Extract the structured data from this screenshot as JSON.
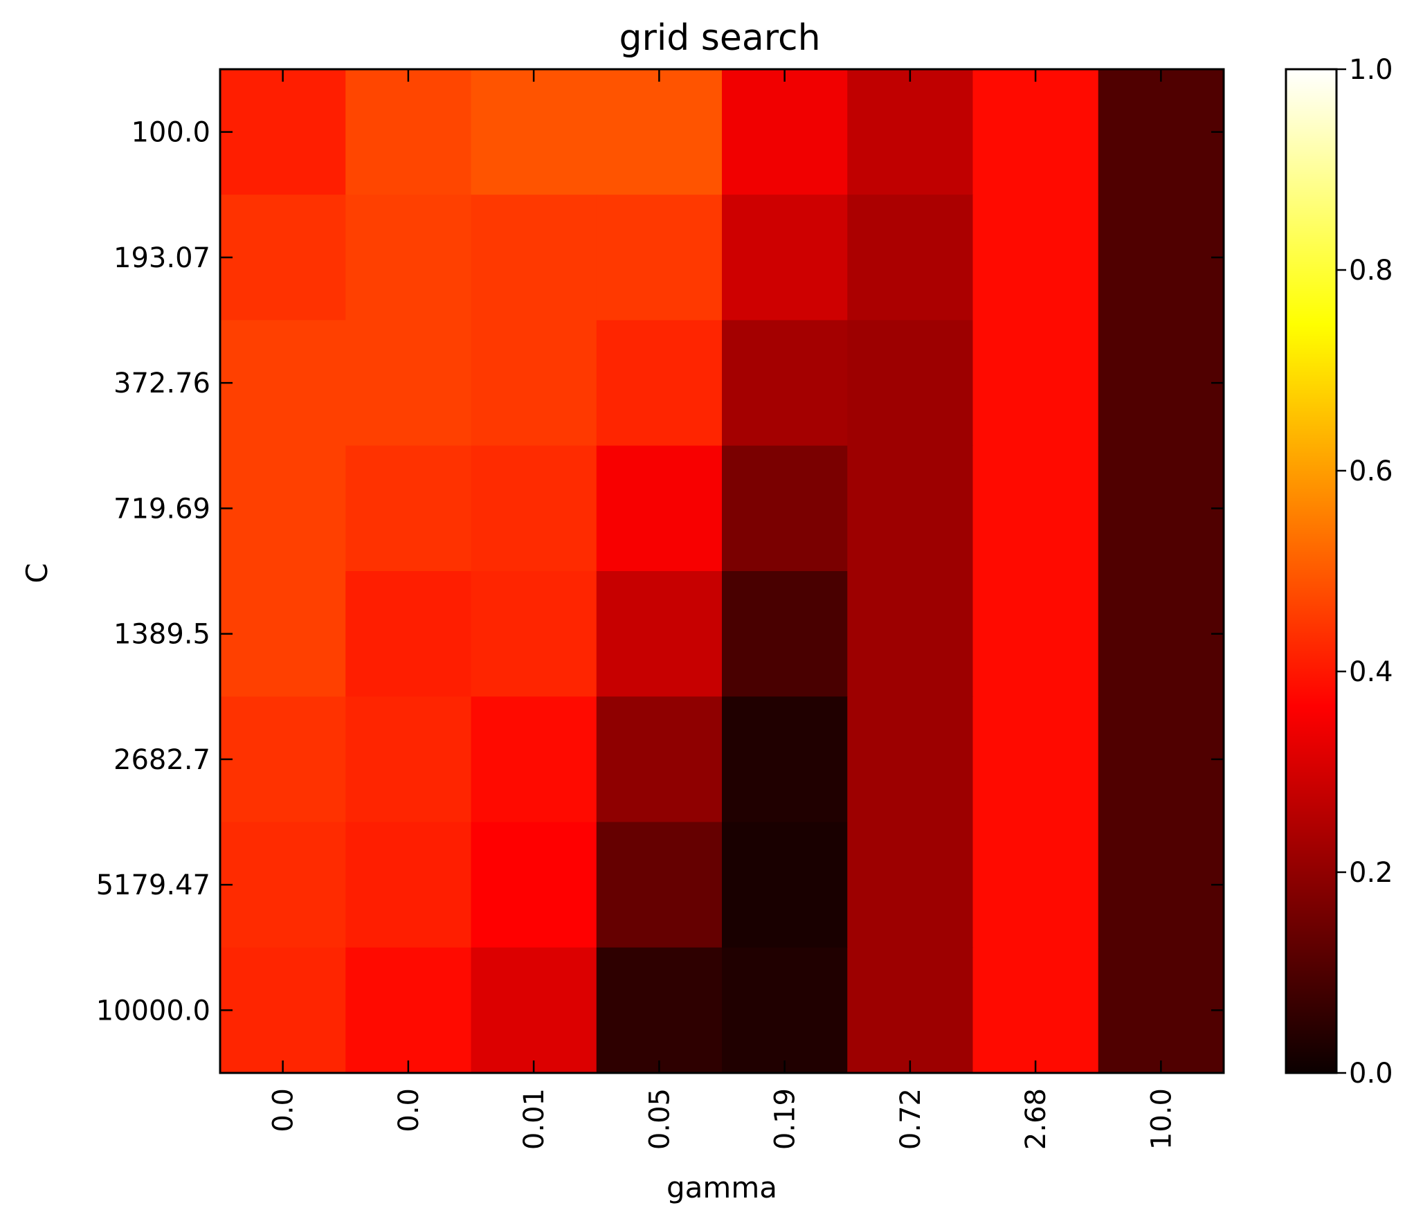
{
  "chart_data": {
    "type": "heatmap",
    "title": "grid search",
    "xlabel": "gamma",
    "ylabel": "C",
    "x_categories": [
      "0.0",
      "0.0",
      "0.01",
      "0.05",
      "0.19",
      "0.72",
      "2.68",
      "10.0"
    ],
    "y_categories": [
      "100.0",
      "193.07",
      "372.76",
      "719.69",
      "1389.5",
      "2682.7",
      "5179.47",
      "10000.0"
    ],
    "values": [
      [
        0.41,
        0.47,
        0.49,
        0.49,
        0.33,
        0.26,
        0.38,
        0.1
      ],
      [
        0.44,
        0.46,
        0.45,
        0.45,
        0.28,
        0.23,
        0.38,
        0.1
      ],
      [
        0.46,
        0.46,
        0.45,
        0.42,
        0.22,
        0.21,
        0.38,
        0.1
      ],
      [
        0.46,
        0.44,
        0.43,
        0.34,
        0.16,
        0.21,
        0.38,
        0.1
      ],
      [
        0.46,
        0.41,
        0.42,
        0.27,
        0.09,
        0.21,
        0.38,
        0.1
      ],
      [
        0.44,
        0.42,
        0.38,
        0.19,
        0.03,
        0.21,
        0.38,
        0.1
      ],
      [
        0.43,
        0.41,
        0.35,
        0.13,
        0.02,
        0.21,
        0.38,
        0.1
      ],
      [
        0.42,
        0.38,
        0.3,
        0.05,
        0.03,
        0.21,
        0.38,
        0.1
      ]
    ],
    "colormap": "hot",
    "colorbar": {
      "range": [
        0.0,
        1.0
      ],
      "ticks": [
        "0.0",
        "0.2",
        "0.4",
        "0.6",
        "0.8",
        "1.0"
      ]
    },
    "x_tick_rotation": "vertical",
    "grid": false,
    "legend": "colorbar-right"
  }
}
